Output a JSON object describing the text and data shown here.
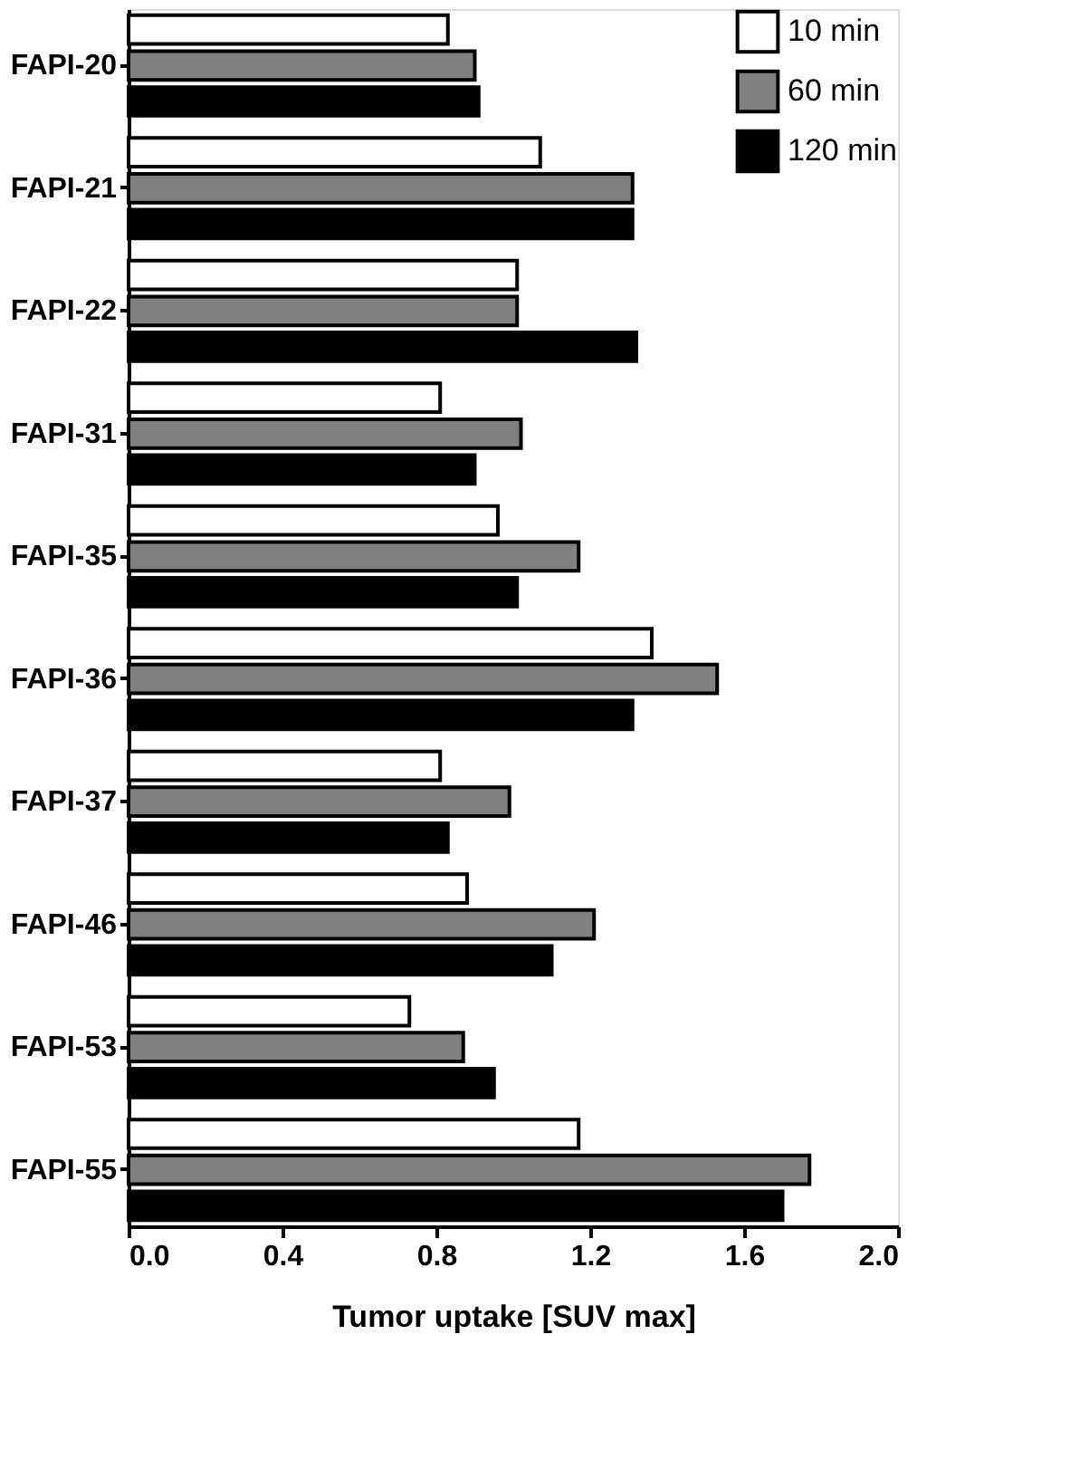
{
  "chart_data": {
    "type": "bar",
    "orientation": "horizontal",
    "xlabel": "Tumor uptake [SUV max]",
    "categories": [
      "FAPI-20",
      "FAPI-21",
      "FAPI-22",
      "FAPI-31",
      "FAPI-35",
      "FAPI-36",
      "FAPI-37",
      "FAPI-46",
      "FAPI-53",
      "FAPI-55"
    ],
    "series": [
      {
        "name": "10 min",
        "color": "#ffffff",
        "values": [
          0.83,
          1.07,
          1.01,
          0.81,
          0.96,
          1.36,
          0.81,
          0.88,
          0.73,
          1.17
        ]
      },
      {
        "name": "60 min",
        "color": "#808080",
        "values": [
          0.9,
          1.31,
          1.01,
          1.02,
          1.17,
          1.53,
          0.99,
          1.21,
          0.87,
          1.77
        ]
      },
      {
        "name": "120 min",
        "color": "#000000",
        "values": [
          0.91,
          1.31,
          1.32,
          0.9,
          1.01,
          1.31,
          0.83,
          1.1,
          0.95,
          1.7
        ]
      }
    ],
    "xlim": [
      0.0,
      2.0
    ],
    "xticks": [
      {
        "value": 0.0,
        "label": "0.0"
      },
      {
        "value": 0.4,
        "label": "0.4"
      },
      {
        "value": 0.8,
        "label": "0.8"
      },
      {
        "value": 1.2,
        "label": "1.2"
      },
      {
        "value": 1.6,
        "label": "1.6"
      },
      {
        "value": 2.0,
        "label": "2.0"
      }
    ],
    "grid": false,
    "legend": "top right"
  }
}
